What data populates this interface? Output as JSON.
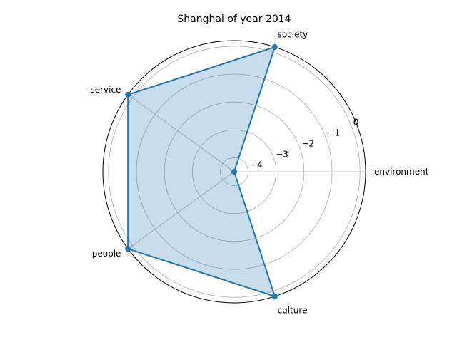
{
  "chart_data": {
    "type": "radar",
    "title": "Shanghai of year 2014",
    "categories": [
      "environment",
      "society",
      "service",
      "people",
      "culture"
    ],
    "values": [
      -4.5,
      0.2,
      0.2,
      0.2,
      0.2
    ],
    "rlim": [
      -4.5,
      0.2
    ],
    "radial_ticks": [
      -4,
      -3,
      -2,
      -1,
      0
    ],
    "radial_tick_labels": [
      "−4",
      "−3",
      "−2",
      "−1",
      "0"
    ],
    "grid": true,
    "colors": {
      "line": "#1f77b4",
      "fill": "#1f77b4",
      "grid": "#b0b0b0",
      "outer": "#000000"
    }
  }
}
